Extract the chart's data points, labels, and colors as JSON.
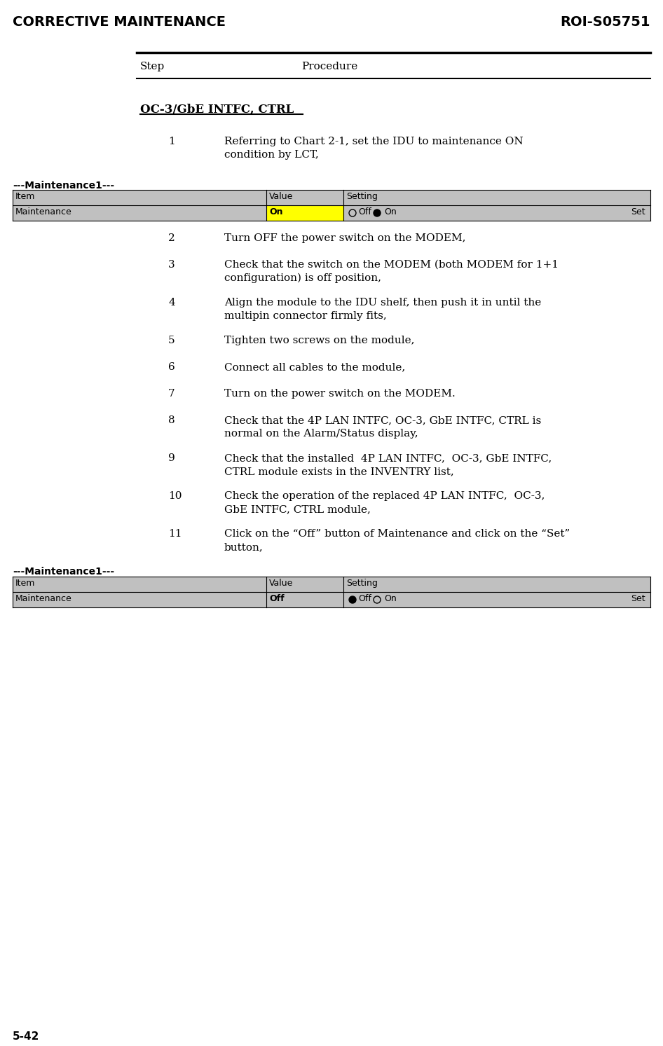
{
  "header_left": "CORRECTIVE MAINTENANCE",
  "header_right": "ROI-S05751",
  "page_num": "5-42",
  "step_label": "Step",
  "procedure_label": "Procedure",
  "section_title": "OC-3/GbE INTFC, CTRL",
  "maintenance_label": "---Maintenance1---",
  "table1_headers": [
    "Item",
    "Value",
    "Setting"
  ],
  "table1_row": [
    "Maintenance",
    "On",
    "Set"
  ],
  "table2_headers": [
    "Item",
    "Value",
    "Setting"
  ],
  "table2_row": [
    "Maintenance",
    "Off",
    "Set"
  ],
  "steps": [
    {
      "num": "1",
      "text": "Referring to Chart 2-1, set the IDU to maintenance ON\ncondition by LCT,"
    },
    {
      "num": "2",
      "text": "Turn OFF the power switch on the MODEM,"
    },
    {
      "num": "3",
      "text": "Check that the switch on the MODEM (both MODEM for 1+1\nconfiguration) is off position,"
    },
    {
      "num": "4",
      "text": "Align the module to the IDU shelf, then push it in until the\nmultipin connector firmly fits,"
    },
    {
      "num": "5",
      "text": "Tighten two screws on the module,"
    },
    {
      "num": "6",
      "text": "Connect all cables to the module,"
    },
    {
      "num": "7",
      "text": "Turn on the power switch on the MODEM."
    },
    {
      "num": "8",
      "text": "Check that the 4P LAN INTFC, OC-3, GbE INTFC, CTRL is\nnormal on the Alarm/Status display,"
    },
    {
      "num": "9",
      "text": "Check that the installed  4P LAN INTFC,  OC-3, GbE INTFC,\nCTRL module exists in the INVENTRY list,"
    },
    {
      "num": "10",
      "text": "Check the operation of the replaced 4P LAN INTFC,  OC-3,\nGbE INTFC, CTRL module,"
    },
    {
      "num": "11",
      "text": "Click on the “Off” button of Maintenance and click on the “Set”\nbutton,"
    }
  ],
  "bg_color": "#ffffff",
  "table_header_bg": "#c0c0c0",
  "table_row_bg_yellow": "#ffff00",
  "table_border_color": "#000000"
}
